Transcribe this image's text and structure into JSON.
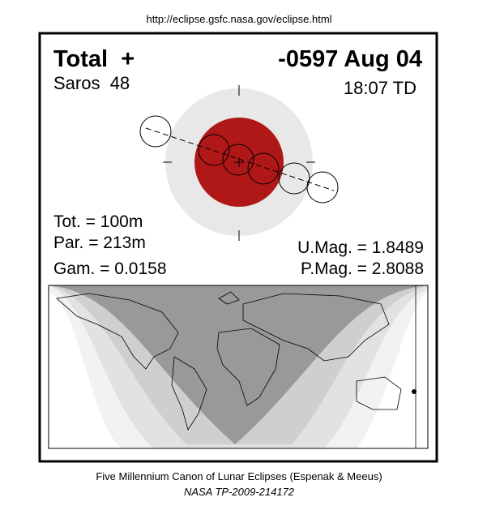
{
  "header": {
    "url": "http://eclipse.gsfc.nasa.gov/eclipse.html"
  },
  "eclipse": {
    "type": "Total  +",
    "date": "-0597 Aug 04",
    "saros": "Saros  48",
    "time": "18:07 TD",
    "totality": "Tot. = 100m",
    "partial": "Par. = 213m",
    "gamma": "Gam. = 0.0158",
    "umbral_magnitude": "U.Mag. = 1.8489",
    "penumbral_magnitude": "P.Mag. = 2.8088"
  },
  "footer": {
    "canon": "Five Millennium Canon of Lunar Eclipses (Espenak & Meeus)",
    "reference": "NASA TP-2009-214172"
  }
}
